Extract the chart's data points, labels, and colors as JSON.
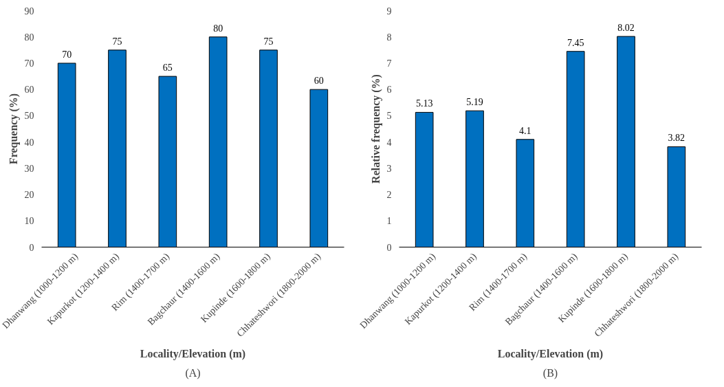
{
  "chart_data": [
    {
      "type": "bar",
      "xlabel": "Locality/Elevation (m)",
      "ylabel": "Frequency (%)",
      "categories": [
        "Dhanwang (1000-1200 m)",
        "Kapurkot (1200-1400 m)",
        "Rim (1400-1700 m)",
        "Bagchaur (1400-1600 m)",
        "Kupinde (1600-1800 m)",
        "Chhateshwori (1800-2000 m)"
      ],
      "values": [
        70,
        75,
        65,
        80,
        75,
        60
      ],
      "color": "#0070c0",
      "ylim": [
        0,
        90
      ],
      "yticks": [
        0,
        10,
        20,
        30,
        40,
        50,
        60,
        70,
        80,
        90
      ],
      "data_labels": true,
      "grid": false,
      "annotations": [
        "(A)"
      ]
    },
    {
      "type": "bar",
      "xlabel": "Locality/Elevation (m)",
      "ylabel": "Relative frequency (%)",
      "categories": [
        "Dhanwang (1000-1200 m)",
        "Kapurkot (1200-1400 m)",
        "Rim (1400-1700 m)",
        "Bagchaur (1400-1600 m)",
        "Kupinde (1600-1800 m)",
        "Chhateshwori (1800-2000 m)"
      ],
      "values": [
        5.13,
        5.19,
        4.1,
        7.45,
        8.02,
        3.82
      ],
      "color": "#0070c0",
      "ylim": [
        0,
        9
      ],
      "yticks": [
        0,
        1,
        2,
        3,
        4,
        5,
        6,
        7,
        8,
        9
      ],
      "data_labels": true,
      "grid": false,
      "annotations": [
        "(B)"
      ]
    }
  ]
}
